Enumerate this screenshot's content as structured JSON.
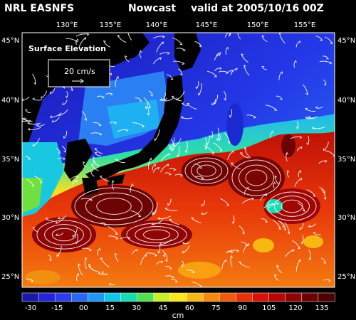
{
  "title": {
    "source": "NRL EASNFS",
    "product": "Nowcast",
    "valid": "valid at 2005/10/16 00Z"
  },
  "map": {
    "lon_labels": [
      "130°E",
      "135°E",
      "140°E",
      "145°E",
      "150°E",
      "155°E"
    ],
    "lat_labels_left": [
      "45°N",
      "40°N",
      "35°N",
      "30°N",
      "25°N"
    ],
    "lat_labels_right": [
      "45°N",
      "40°N",
      "35°N",
      "30°N",
      "25°N"
    ],
    "field_name": "Surface Elevation",
    "reference_vector_label": "20 cm/s"
  },
  "colorbar": {
    "tick_labels": [
      "-30",
      "-15",
      "00",
      "15",
      "30",
      "45",
      "60",
      "75",
      "90",
      "105",
      "120",
      "135"
    ],
    "unit": "cm",
    "colors": [
      "#1a1aa6",
      "#2424d8",
      "#2e3cf0",
      "#2a68f2",
      "#1e98f4",
      "#12c6e8",
      "#18dcb0",
      "#52e050",
      "#c8ee2a",
      "#f6e81c",
      "#f8b812",
      "#f6880c",
      "#f05a0a",
      "#e8300a",
      "#d81208",
      "#b80806",
      "#900404",
      "#6c0202",
      "#4c0000"
    ]
  }
}
